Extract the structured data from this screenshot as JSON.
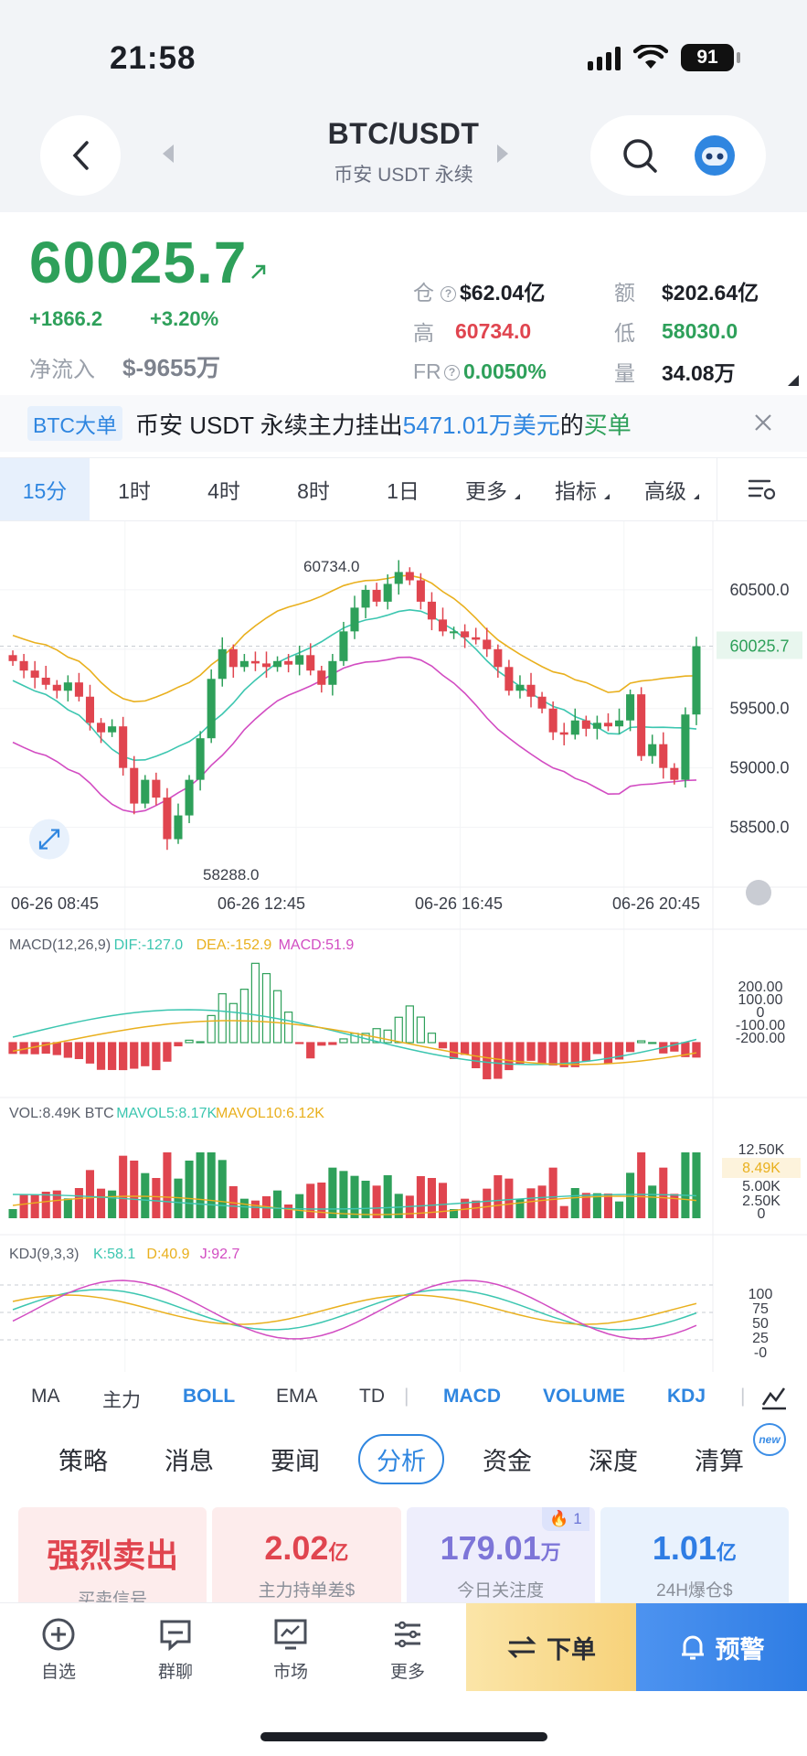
{
  "status_bar": {
    "time": "21:58",
    "battery": "91"
  },
  "header": {
    "symbol": "BTC/USDT",
    "market": "币安 USDT 永续"
  },
  "price": {
    "last": "60025.7",
    "change": "+1866.2",
    "change_pct": "+3.20%",
    "netflow_label": "净流入",
    "netflow_value": "$-9655万"
  },
  "stats": {
    "oi_label": "仓",
    "oi_value": "$62.04亿",
    "amount_label": "额",
    "amount_value": "$202.64亿",
    "high_label": "高",
    "high_value": "60734.0",
    "low_label": "低",
    "low_value": "58030.0",
    "fr_label": "FR",
    "fr_value": "0.0050%",
    "vol_label": "量",
    "vol_value": "34.08万"
  },
  "banner": {
    "tag": "BTC大单",
    "text1": "币安 USDT 永续主力挂出",
    "amount": "5471.01万美元",
    "text2": "的",
    "side": "买单"
  },
  "timeframes": [
    "15分",
    "1时",
    "4时",
    "8时",
    "1日",
    "更多",
    "指标",
    "高级"
  ],
  "active_timeframe": "15分",
  "chart": {
    "price_axis": [
      "60500.0",
      "60025.7",
      "59500.0",
      "59000.0",
      "58500.0"
    ],
    "current_price": "60025.7",
    "high_mark": "60734.0",
    "low_mark": "58288.0",
    "time_axis": [
      "06-26 08:45",
      "06-26 12:45",
      "06-26 16:45",
      "06-26 20:45"
    ],
    "macd_title": "MACD(12,26,9)",
    "macd_dif": "DIF:-127.0",
    "macd_dea": "DEA:-152.9",
    "macd_val": "MACD:51.9",
    "macd_axis": [
      "200.00",
      "100.00",
      "0",
      "-100.00",
      "-200.00"
    ],
    "vol_title": "VOL:8.49K BTC",
    "vol_mavol5": "MAVOL5:8.17K",
    "vol_mavol10": "MAVOL10:6.12K",
    "vol_axis": [
      "12.50K",
      "8.49K",
      "5.00K",
      "2.50K",
      "0"
    ],
    "kdj_title": "KDJ(9,3,3)",
    "kdj_k": "K:58.1",
    "kdj_d": "D:40.9",
    "kdj_j": "J:92.7",
    "kdj_axis": [
      "100",
      "75",
      "50",
      "25",
      "-0"
    ],
    "colors": {
      "up": "#2ea05a",
      "down": "#e0454f",
      "boll_upper": "#e9b01e",
      "boll_mid": "#3cc6b0",
      "boll_lower": "#d24cc2"
    }
  },
  "indicators": {
    "main": [
      "MA",
      "主力",
      "BOLL",
      "EMA",
      "TD"
    ],
    "sub": [
      "MACD",
      "VOLUME",
      "KDJ"
    ],
    "active_main": "BOLL"
  },
  "analysis_tabs": [
    "策略",
    "消息",
    "要闻",
    "分析",
    "资金",
    "深度",
    "清算"
  ],
  "active_analysis_tab": "分析",
  "new_badge": "new",
  "cards": [
    {
      "value": "强烈卖出",
      "unit": "",
      "desc": "买卖信号"
    },
    {
      "value": "2.02",
      "unit": "亿",
      "desc": "主力持单差$"
    },
    {
      "value": "179.01",
      "unit": "万",
      "desc": "今日关注度",
      "hot": "1"
    },
    {
      "value": "1.01",
      "unit": "亿",
      "desc": "24H爆仓$"
    }
  ],
  "bottom_nav": [
    "自选",
    "群聊",
    "市场",
    "更多"
  ],
  "order_button": "下单",
  "alert_button": "预警"
}
